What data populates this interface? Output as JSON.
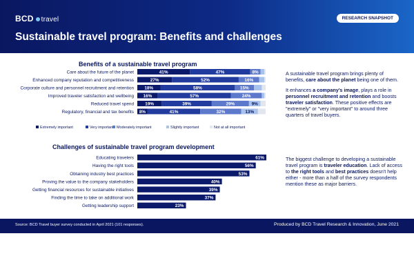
{
  "header": {
    "logo_brand": "BCD",
    "logo_sub": "travel",
    "badge": "RESEARCH SNAPSHOT",
    "title": "Sustainable travel program: Benefits and challenges"
  },
  "colors": {
    "extremely": "#0b1a6b",
    "very": "#213c9e",
    "moderately": "#5c79cc",
    "slightly": "#a9c2ec",
    "not_at_all": "#e2e6ef",
    "single": "#0b1a6b"
  },
  "chart_data": [
    {
      "type": "bar",
      "stacked": true,
      "orientation": "horizontal",
      "title": "Benefits of a sustainable travel program",
      "categories": [
        "Care about the future of the planet",
        "Enhanced company reputation and competitiveness",
        "Corporate culture and personnel recruitment and retention",
        "Improved traveler satisfaction and wellbeing",
        "Reduced travel spend",
        "Regulatory, financial and tax benefits"
      ],
      "series": [
        {
          "name": "Extremely important",
          "values": [
            41,
            27,
            18,
            16,
            19,
            8
          ]
        },
        {
          "name": "Very important",
          "values": [
            47,
            52,
            58,
            57,
            39,
            41
          ]
        },
        {
          "name": "Moderately important",
          "values": [
            8,
            16,
            15,
            24,
            29,
            32
          ]
        },
        {
          "name": "Slightly important",
          "values": [
            3,
            4,
            6,
            2,
            9,
            13
          ]
        },
        {
          "name": "Not at all important",
          "values": [
            1,
            1,
            3,
            1,
            4,
            6
          ]
        }
      ],
      "value_labels": [
        [
          "41%",
          "47%",
          "8%",
          "",
          ""
        ],
        [
          "27%",
          "52%",
          "16%",
          "",
          ""
        ],
        [
          "18%",
          "58%",
          "15%",
          "",
          ""
        ],
        [
          "16%",
          "57%",
          "24%",
          "",
          ""
        ],
        [
          "19%",
          "39%",
          "29%",
          "9%",
          ""
        ],
        [
          "8%",
          "41%",
          "32%",
          "13%",
          ""
        ]
      ],
      "legend_position": "bottom",
      "xlim": [
        0,
        100
      ]
    },
    {
      "type": "bar",
      "orientation": "horizontal",
      "title": "Challenges of sustainable travel program development",
      "categories": [
        "Educating travelers",
        "Having the right tools",
        "Obtaining industry best practices",
        "Proving the value to the company stakeholders",
        "Getting financial resources for sustainable initiatives",
        "Finding the time to take on additional work",
        "Getting leadership support"
      ],
      "values": [
        61,
        56,
        53,
        40,
        39,
        37,
        23
      ],
      "value_labels": [
        "61%",
        "56%",
        "53%",
        "40%",
        "39%",
        "37%",
        "23%"
      ],
      "xlim": [
        0,
        61
      ]
    }
  ],
  "benefits_text": {
    "p1_a": "A sustainable travel program brings plenty of benefits, ",
    "p1_b": "care about the planet",
    "p1_c": " being one of them.",
    "p2_a": "It enhances ",
    "p2_b": "a company's image",
    "p2_c": ", plays a role in ",
    "p2_d": "personnel recruitment and retention",
    "p2_e": " and boosts ",
    "p2_f": "traveler satisfaction",
    "p2_g": ". These positive effects are \"extremely\" or \"very important\" to around three quarters of travel buyers."
  },
  "challenges_text": {
    "a": "The biggest challenge to developing a sustainable travel program is ",
    "b": "traveler education",
    "c": ". Lack of access to ",
    "d": "the right tools",
    "e": " and ",
    "f": "best practices",
    "g": " doesn't help either - more than a half of the survey respondents mention these as major barriers."
  },
  "footer": {
    "source": "Source: BCD Travel buyer survey conducted in April 2021 (101 responses).",
    "produced": "Produced by BCD Travel Research & Innovation, June 2021"
  }
}
